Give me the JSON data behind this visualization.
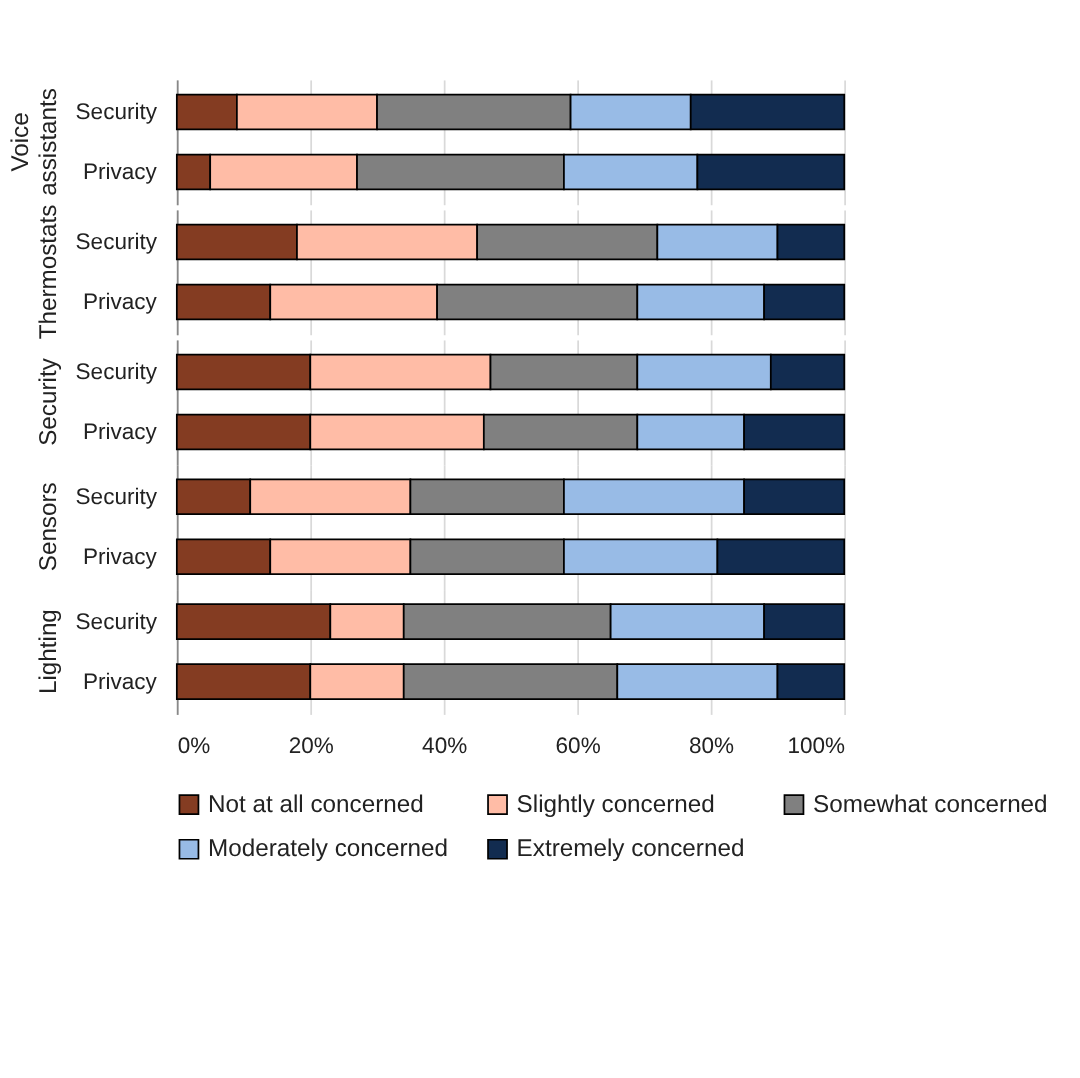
{
  "chart_data": [
    {
      "type": "bar",
      "title": "Voice assistants",
      "orientation": "horizontal",
      "stacked": true,
      "categories": [
        "Security",
        "Privacy"
      ],
      "xlim": [
        0,
        100
      ],
      "xticks": [
        {
          "value": 0,
          "label": null
        },
        {
          "value": 20,
          "label": null
        },
        {
          "value": 40,
          "label": null
        },
        {
          "value": 60,
          "label": null
        },
        {
          "value": 80,
          "label": null
        },
        {
          "value": 100,
          "label": null
        }
      ],
      "grid": "x",
      "tick_labels": "y",
      "legend": false,
      "series": [
        {
          "color": "#843c22",
          "values": [
            9,
            5
          ]
        },
        {
          "color": "#ffbca6",
          "values": [
            21,
            22
          ]
        },
        {
          "color": "#808080",
          "values": [
            29,
            31
          ]
        },
        {
          "color": "#98bbe6",
          "values": [
            18,
            20
          ]
        },
        {
          "color": "#122c50",
          "values": [
            23,
            22
          ]
        }
      ]
    },
    {
      "type": "bar",
      "title": "Thermostats",
      "orientation": "horizontal",
      "stacked": true,
      "categories": [
        "Security",
        "Privacy"
      ],
      "xlim": [
        0,
        100
      ],
      "xticks": [
        {
          "value": 0,
          "label": null
        },
        {
          "value": 20,
          "label": null
        },
        {
          "value": 40,
          "label": null
        },
        {
          "value": 60,
          "label": null
        },
        {
          "value": 80,
          "label": null
        },
        {
          "value": 100,
          "label": null
        }
      ],
      "grid": "x",
      "tick_labels": "y",
      "legend": false,
      "series": [
        {
          "color": "#843c22",
          "values": [
            18,
            14
          ]
        },
        {
          "color": "#ffbca6",
          "values": [
            27,
            25
          ]
        },
        {
          "color": "#808080",
          "values": [
            27,
            30
          ]
        },
        {
          "color": "#98bbe6",
          "values": [
            18,
            19
          ]
        },
        {
          "color": "#122c50",
          "values": [
            10,
            12
          ]
        }
      ]
    },
    {
      "type": "bar",
      "title": "Security",
      "orientation": "horizontal",
      "stacked": true,
      "categories": [
        "Security",
        "Privacy"
      ],
      "xlim": [
        0,
        100
      ],
      "xticks": [
        {
          "value": 0,
          "label": null
        },
        {
          "value": 20,
          "label": null
        },
        {
          "value": 40,
          "label": null
        },
        {
          "value": 60,
          "label": null
        },
        {
          "value": 80,
          "label": null
        },
        {
          "value": 100,
          "label": null
        }
      ],
      "grid": "x",
      "tick_labels": "y",
      "legend": false,
      "series": [
        {
          "color": "#843c22",
          "values": [
            20,
            20
          ]
        },
        {
          "color": "#ffbca6",
          "values": [
            27,
            26
          ]
        },
        {
          "color": "#808080",
          "values": [
            22,
            23
          ]
        },
        {
          "color": "#98bbe6",
          "values": [
            20,
            16
          ]
        },
        {
          "color": "#122c50",
          "values": [
            11,
            15
          ]
        }
      ]
    },
    {
      "type": "bar",
      "title": "Sensors",
      "orientation": "horizontal",
      "stacked": true,
      "categories": [
        "Security",
        "Privacy"
      ],
      "xlim": [
        0,
        100
      ],
      "xticks": [
        {
          "value": 0,
          "label": null
        },
        {
          "value": 20,
          "label": null
        },
        {
          "value": 40,
          "label": null
        },
        {
          "value": 60,
          "label": null
        },
        {
          "value": 80,
          "label": null
        },
        {
          "value": 100,
          "label": null
        }
      ],
      "grid": "x",
      "tick_labels": "y",
      "legend": false,
      "series": [
        {
          "color": "#843c22",
          "values": [
            11,
            14
          ]
        },
        {
          "color": "#ffbca6",
          "values": [
            24,
            21
          ]
        },
        {
          "color": "#808080",
          "values": [
            23,
            23
          ]
        },
        {
          "color": "#98bbe6",
          "values": [
            27,
            23
          ]
        },
        {
          "color": "#122c50",
          "values": [
            15,
            19
          ]
        }
      ]
    },
    {
      "type": "bar",
      "title": "Lighting",
      "orientation": "horizontal",
      "stacked": true,
      "categories": [
        "Security",
        "Privacy"
      ],
      "xlim": [
        0,
        100
      ],
      "xticks": [
        {
          "value": 0,
          "label": "0%"
        },
        {
          "value": 20,
          "label": "20%"
        },
        {
          "value": 40,
          "label": "40%"
        },
        {
          "value": 60,
          "label": "60%"
        },
        {
          "value": 80,
          "label": "80%"
        },
        {
          "value": 100,
          "label": "100%"
        }
      ],
      "grid": "x",
      "legend": "bottom",
      "series": [
        {
          "name": "Not at all concerned",
          "color": "#843c22",
          "values": [
            23,
            20
          ]
        },
        {
          "name": "Slightly concerned",
          "color": "#ffbca6",
          "values": [
            11,
            14
          ]
        },
        {
          "name": "Somewhat concerned",
          "color": "#808080",
          "values": [
            31,
            32
          ]
        },
        {
          "name": "Moderately concerned",
          "color": "#98bbe6",
          "values": [
            23,
            24
          ]
        },
        {
          "name": "Extremely concerned",
          "color": "#122c50",
          "values": [
            12,
            10
          ]
        }
      ]
    }
  ]
}
